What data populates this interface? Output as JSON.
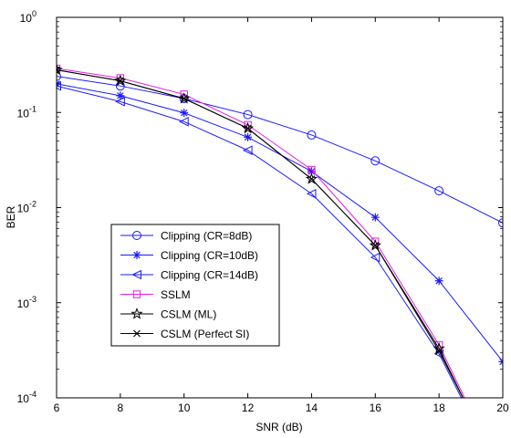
{
  "chart_data": {
    "type": "line",
    "xlabel": "SNR (dB)",
    "ylabel": "BER",
    "xlim": [
      6,
      20
    ],
    "ylim": [
      0.0001,
      1
    ],
    "yscale": "log",
    "x_ticks": [
      "6",
      "8",
      "10",
      "12",
      "14",
      "16",
      "18",
      "20"
    ],
    "y_ticks": [
      {
        "base": "10",
        "exp": "-4"
      },
      {
        "base": "10",
        "exp": "-3"
      },
      {
        "base": "10",
        "exp": "-2"
      },
      {
        "base": "10",
        "exp": "-1"
      },
      {
        "base": "10",
        "exp": "0"
      }
    ],
    "grid": false,
    "legend_position": "lower-left",
    "series": [
      {
        "name": "Clipping (CR=8dB)",
        "color": "#1a1aff",
        "marker": "circle",
        "x": [
          6,
          8,
          10,
          12,
          14,
          16,
          18,
          20
        ],
        "y": [
          0.24,
          0.19,
          0.14,
          0.095,
          0.058,
          0.031,
          0.015,
          0.0069
        ]
      },
      {
        "name": "Clipping (CR=10dB)",
        "color": "#1a1aff",
        "marker": "star",
        "x": [
          6,
          8,
          10,
          12,
          14,
          16,
          18,
          20
        ],
        "y": [
          0.2,
          0.15,
          0.099,
          0.055,
          0.024,
          0.0079,
          0.0017,
          0.00024
        ]
      },
      {
        "name": "Clipping (CR=14dB)",
        "color": "#1a1aff",
        "marker": "triangle-left",
        "x": [
          6,
          8,
          10,
          12,
          14,
          16,
          18,
          18.7
        ],
        "y": [
          0.19,
          0.13,
          0.08,
          0.04,
          0.014,
          0.003,
          0.00029,
          0.0001
        ]
      },
      {
        "name": "SSLM",
        "color": "#e020e0",
        "marker": "square",
        "x": [
          6,
          8,
          10,
          12,
          14,
          16,
          18,
          18.8
        ],
        "y": [
          0.29,
          0.23,
          0.155,
          0.074,
          0.025,
          0.0044,
          0.00036,
          0.0001
        ]
      },
      {
        "name": "CSLM (ML)",
        "color": "#000000",
        "marker": "pentagram",
        "x": [
          6,
          8,
          10,
          12,
          14,
          16,
          18,
          18.75
        ],
        "y": [
          0.28,
          0.215,
          0.14,
          0.068,
          0.02,
          0.004,
          0.00033,
          0.0001
        ]
      },
      {
        "name": "CSLM (Perfect SI)",
        "color": "#000000",
        "marker": "x",
        "x": [
          6,
          8,
          10,
          12,
          14,
          16,
          18,
          18.75
        ],
        "y": [
          0.28,
          0.215,
          0.14,
          0.068,
          0.02,
          0.004,
          0.00031,
          0.0001
        ]
      }
    ]
  }
}
